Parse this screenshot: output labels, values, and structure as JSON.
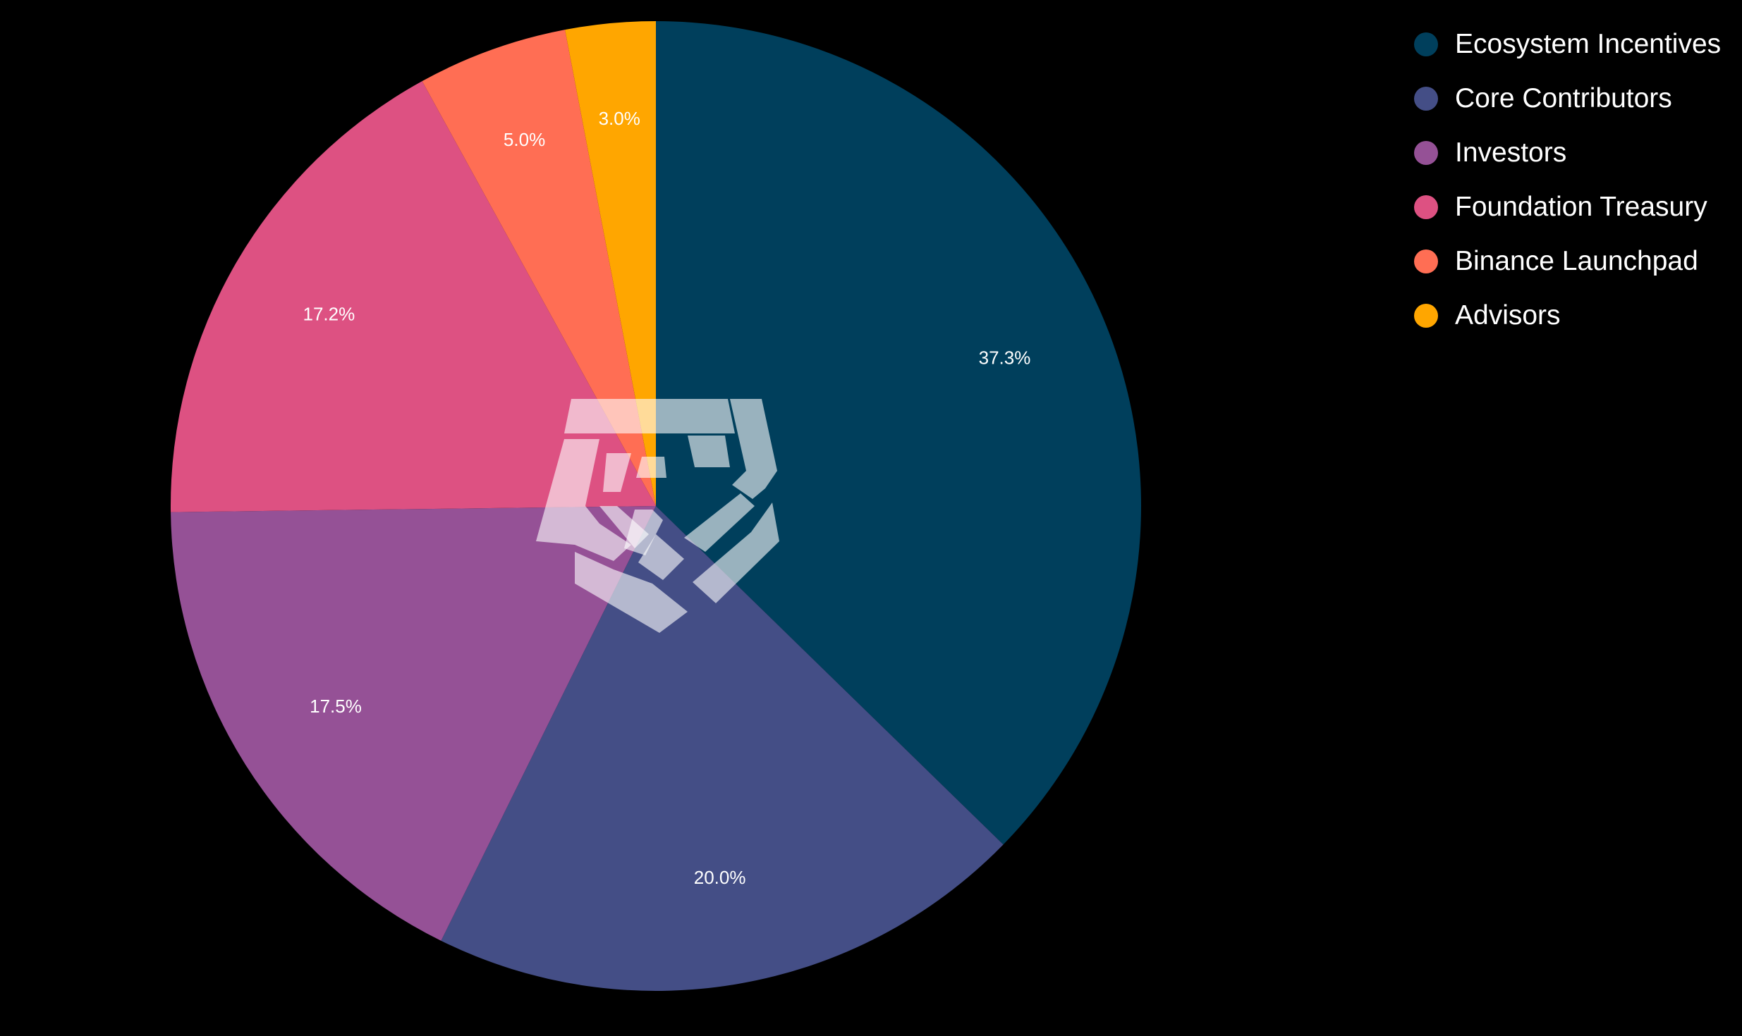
{
  "chart_data": {
    "type": "pie",
    "start_angle": "12 o'clock",
    "direction": "clockwise",
    "legend_position": "top-right",
    "slices": [
      {
        "name": "Ecosystem Incentives",
        "value": 37.3,
        "label": "37.3%",
        "color": "#003f5c"
      },
      {
        "name": "Core Contributors",
        "value": 20.0,
        "label": "20.0%",
        "color": "#444e86"
      },
      {
        "name": "Investors",
        "value": 17.5,
        "label": "17.5%",
        "color": "#955196"
      },
      {
        "name": "Foundation Treasury",
        "value": 17.2,
        "label": "17.2%",
        "color": "#dd5182"
      },
      {
        "name": "Binance Launchpad",
        "value": 5.0,
        "label": "5.0%",
        "color": "#ff6e54"
      },
      {
        "name": "Advisors",
        "value": 3.0,
        "label": "3.0%",
        "color": "#ffa600"
      }
    ],
    "watermark": "logo"
  }
}
